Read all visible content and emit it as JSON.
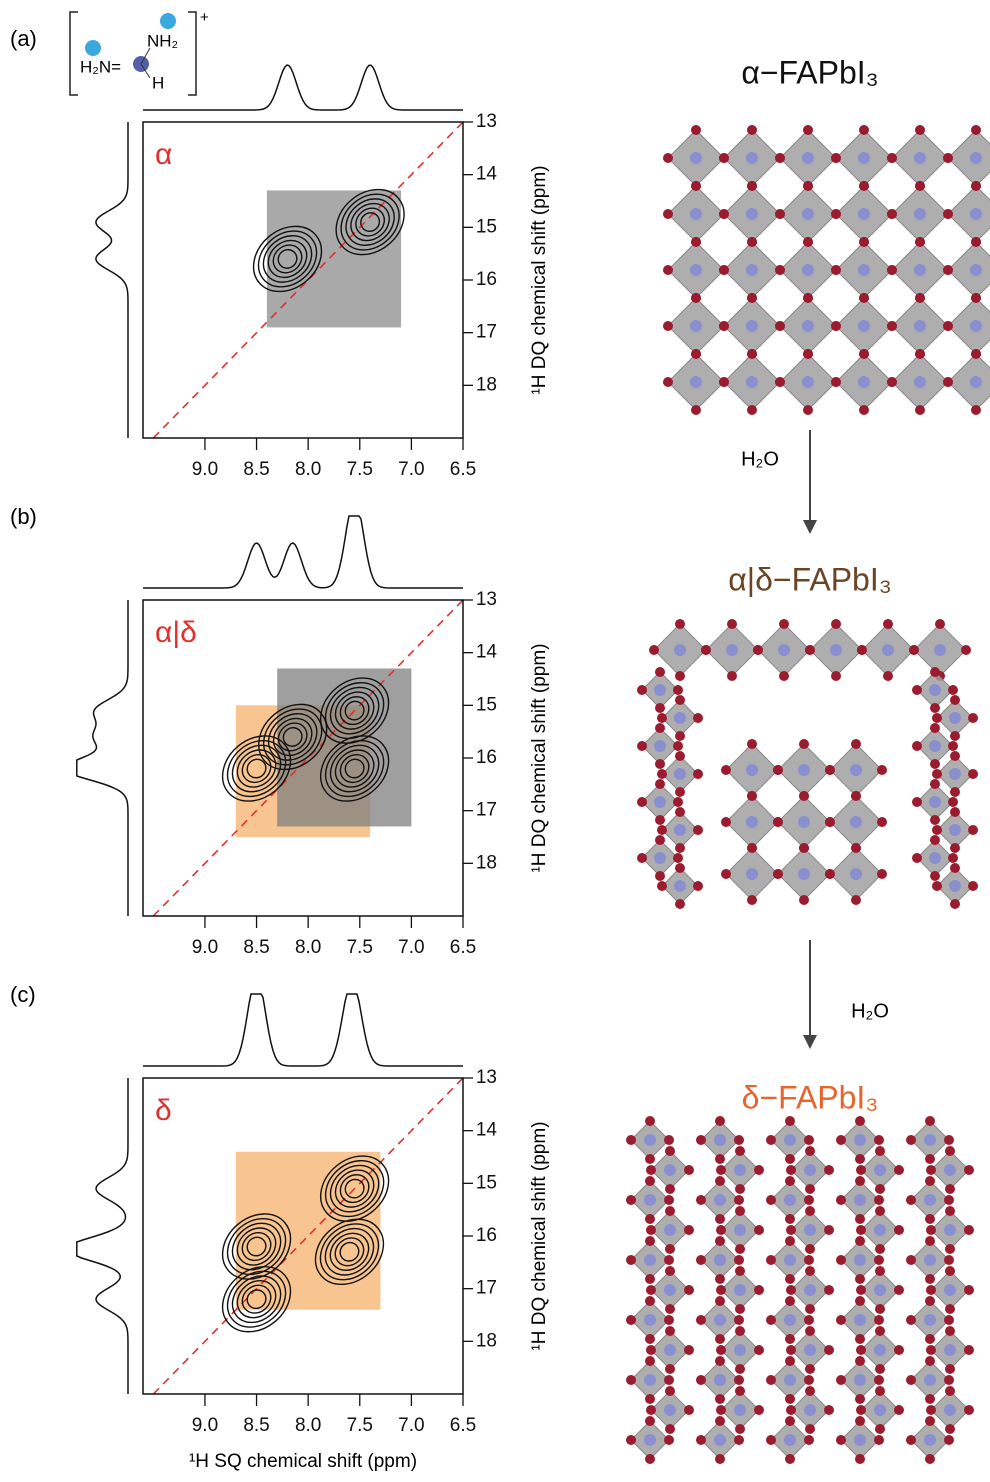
{
  "chart_data": [
    {
      "type": "contour",
      "panel_label": "(a)",
      "phase": "α",
      "xlim": [
        9.6,
        6.5
      ],
      "ylim": [
        13,
        19
      ],
      "xticks": [
        {
          "value": 9,
          "label": "9.0"
        },
        {
          "value": 8.5,
          "label": "8.5"
        },
        {
          "value": 8,
          "label": "8.0"
        },
        {
          "value": 7.5,
          "label": "7.5"
        },
        {
          "value": 7,
          "label": "7.0"
        },
        {
          "value": 6.5,
          "label": "6.5"
        }
      ],
      "yticks": [
        13,
        14,
        15,
        16,
        17,
        18
      ],
      "regions": [
        {
          "color": "#8c8c8c",
          "xlim": [
            8.4,
            7.1
          ],
          "ylim": [
            14.3,
            16.9
          ]
        }
      ],
      "peaks": [
        {
          "x": 7.4,
          "y": 14.9
        },
        {
          "x": 8.2,
          "y": 15.6
        }
      ],
      "ylabel": "¹H DQ chemical shift (ppm)"
    },
    {
      "type": "contour",
      "panel_label": "(b)",
      "phase": "α|δ",
      "xlim": [
        9.6,
        6.5
      ],
      "ylim": [
        13,
        19
      ],
      "xticks": [
        {
          "value": 9,
          "label": "9.0"
        },
        {
          "value": 8.5,
          "label": "8.5"
        },
        {
          "value": 8,
          "label": "8.0"
        },
        {
          "value": 7.5,
          "label": "7.5"
        },
        {
          "value": 7,
          "label": "7.0"
        },
        {
          "value": 6.5,
          "label": "6.5"
        }
      ],
      "yticks": [
        13,
        14,
        15,
        16,
        17,
        18
      ],
      "regions": [
        {
          "color": "#f6b26b",
          "xlim": [
            8.7,
            7.4
          ],
          "ylim": [
            15,
            17.5
          ]
        },
        {
          "color": "#7f7f7f",
          "xlim": [
            8.3,
            7.0
          ],
          "ylim": [
            14.3,
            17.3
          ]
        }
      ],
      "peaks": [
        {
          "x": 7.55,
          "y": 15.1
        },
        {
          "x": 8.15,
          "y": 15.6
        },
        {
          "x": 8.5,
          "y": 16.2
        },
        {
          "x": 7.55,
          "y": 16.2
        }
      ],
      "ylabel": "¹H DQ chemical shift (ppm)"
    },
    {
      "type": "contour",
      "panel_label": "(c)",
      "phase": "δ",
      "xlim": [
        9.6,
        6.5
      ],
      "ylim": [
        13,
        19
      ],
      "xticks": [
        {
          "value": 9,
          "label": "9.0"
        },
        {
          "value": 8.5,
          "label": "8.5"
        },
        {
          "value": 8,
          "label": "8.0"
        },
        {
          "value": 7.5,
          "label": "7.5"
        },
        {
          "value": 7,
          "label": "7.0"
        },
        {
          "value": 6.5,
          "label": "6.5"
        }
      ],
      "yticks": [
        13,
        14,
        15,
        16,
        17,
        18
      ],
      "regions": [
        {
          "color": "#f6b26b",
          "xlim": [
            8.7,
            7.3
          ],
          "ylim": [
            14.4,
            17.4
          ]
        }
      ],
      "peaks": [
        {
          "x": 7.55,
          "y": 15.1
        },
        {
          "x": 7.6,
          "y": 16.3
        },
        {
          "x": 8.5,
          "y": 16.2
        },
        {
          "x": 8.5,
          "y": 17.2
        }
      ],
      "ylabel": "¹H DQ chemical shift (ppm)",
      "xlabel": "¹H SQ chemical shift (ppm)"
    }
  ],
  "cation": {
    "left": "H₂N=",
    "top": "NH₂",
    "bottom": "H",
    "charge": "+"
  },
  "structures": [
    {
      "title": "α−FAPbI₃",
      "color": "#111111"
    },
    {
      "title": "α|δ−FAPbI₃",
      "color": "#6b4423"
    },
    {
      "title": "δ−FAPbI₃",
      "color": "#e8642c"
    }
  ],
  "arrows": [
    "H₂O",
    "H₂O"
  ]
}
